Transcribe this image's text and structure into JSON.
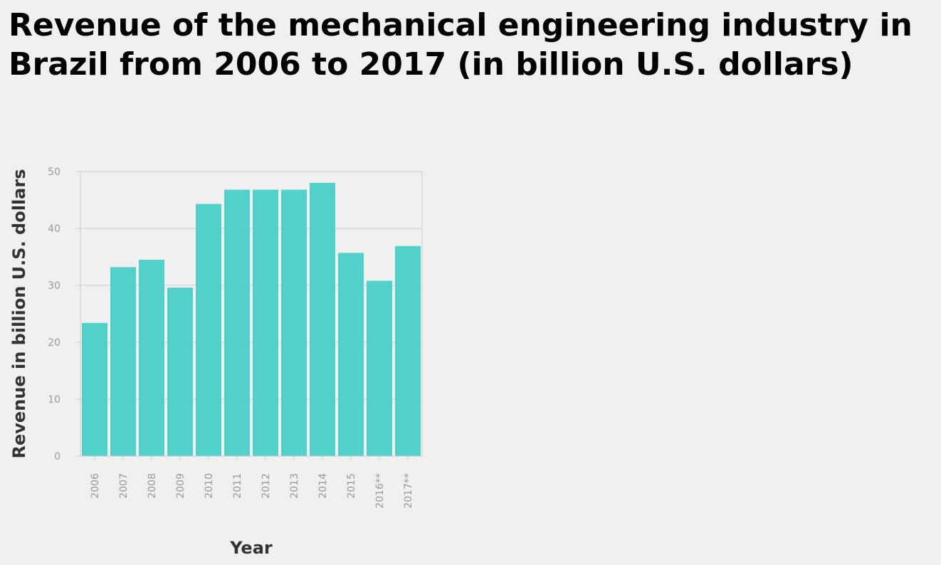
{
  "chart_data": {
    "type": "bar",
    "title": "Revenue of the mechanical engineering industry in Brazil from 2006 to 2017 (in billion U.S. dollars)",
    "xlabel": "Year",
    "ylabel": "Revenue in billion U.S. dollars",
    "categories": [
      "2006",
      "2007",
      "2008",
      "2009",
      "2010",
      "2011",
      "2012",
      "2013",
      "2014",
      "2015",
      "2016**",
      "2017**"
    ],
    "values": [
      23.4,
      33.2,
      34.5,
      29.6,
      44.3,
      46.8,
      46.8,
      46.8,
      48.0,
      35.7,
      30.8,
      36.9
    ],
    "ylim": [
      0,
      50
    ],
    "yticks": [
      0,
      10,
      20,
      30,
      40,
      50
    ],
    "grid": true,
    "legend": "none",
    "bar_color": "#52d1ca",
    "grid_color": "#cccccc"
  }
}
